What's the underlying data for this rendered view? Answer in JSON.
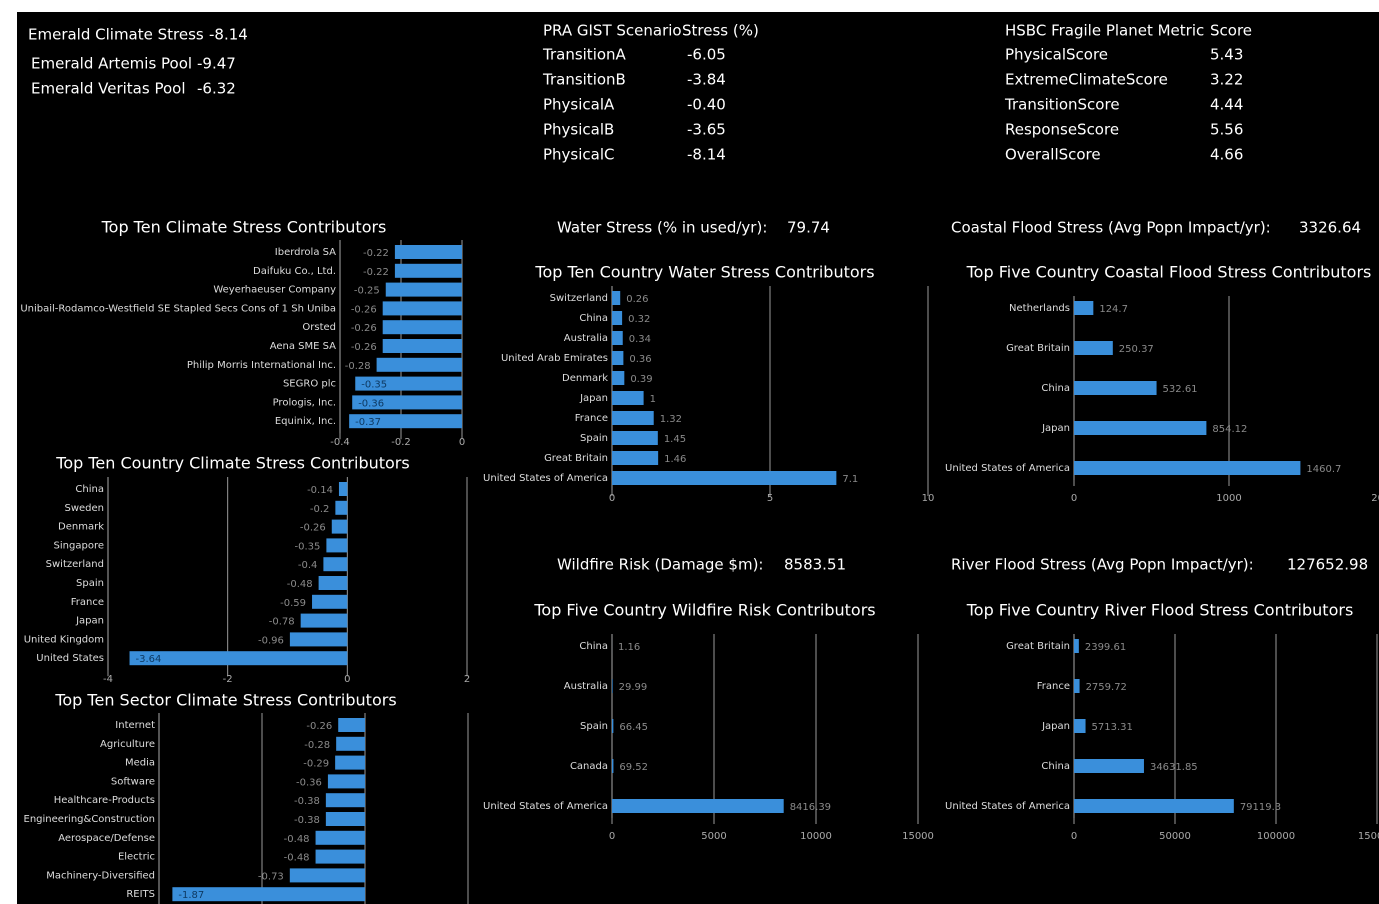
{
  "summary": [
    {
      "label": "Emerald Climate Stress",
      "value": "-8.14"
    },
    {
      "label": "Emerald Artemis Pool",
      "value": "-9.47"
    },
    {
      "label": "Emerald Veritas Pool",
      "value": "-6.32"
    }
  ],
  "scenario_table": {
    "headers": [
      "PRA GIST Scenario",
      "Stress (%)"
    ],
    "rows": [
      [
        "TransitionA",
        "-6.05"
      ],
      [
        "TransitionB",
        "-3.84"
      ],
      [
        "PhysicalA",
        "-0.40"
      ],
      [
        "PhysicalB",
        "-3.65"
      ],
      [
        "PhysicalC",
        "-8.14"
      ]
    ]
  },
  "metric_table": {
    "headers": [
      "HSBC Fragile Planet Metric",
      "Score"
    ],
    "rows": [
      [
        "PhysicalScore",
        "5.43"
      ],
      [
        "ExtremeClimateScore",
        "3.22"
      ],
      [
        "TransitionScore",
        "4.44"
      ],
      [
        "ResponseScore",
        "5.56"
      ],
      [
        "OverallScore",
        "4.66"
      ]
    ]
  },
  "metrics": [
    {
      "label": "Water Stress (% in used/yr):",
      "value": "79.74"
    },
    {
      "label": "Coastal Flood Stress (Avg Popn Impact/yr):",
      "value": "3326.64"
    },
    {
      "label": "Wildfire Risk (Damage $m):",
      "value": "8583.51"
    },
    {
      "label": "River Flood Stress (Avg Popn Impact/yr):",
      "value": "127652.98"
    }
  ],
  "chart_data": [
    {
      "type": "bar",
      "orientation": "horizontal",
      "title": "Top Ten Climate Stress Contributors",
      "categories": [
        "Iberdrola SA",
        "Daifuku Co., Ltd.",
        "Weyerhaeuser Company",
        "Unibail-Rodamco-Westfield SE Stapled Secs Cons of 1 Sh Uniba",
        "Orsted",
        "Aena SME SA",
        "Philip Morris International Inc.",
        "SEGRO plc",
        "Prologis, Inc.",
        "Equinix, Inc."
      ],
      "values": [
        -0.22,
        -0.22,
        -0.25,
        -0.26,
        -0.26,
        -0.26,
        -0.28,
        -0.35,
        -0.36,
        -0.37
      ],
      "color": "#3a8fdb",
      "xlim": [
        -0.4,
        0
      ],
      "xticks": [
        -0.4,
        -0.2,
        0
      ],
      "grid": true
    },
    {
      "type": "bar",
      "orientation": "horizontal",
      "title": "Top Ten Country Climate Stress Contributors",
      "categories": [
        "China",
        "Sweden",
        "Denmark",
        "Singapore",
        "Switzerland",
        "Spain",
        "France",
        "Japan",
        "United Kingdom",
        "United States"
      ],
      "values": [
        -0.14,
        -0.2,
        -0.26,
        -0.35,
        -0.4,
        -0.48,
        -0.59,
        -0.78,
        -0.96,
        -3.64
      ],
      "color": "#3a8fdb",
      "xlim": [
        -4,
        2
      ],
      "xticks": [
        -4,
        -2,
        0,
        2
      ],
      "grid": true
    },
    {
      "type": "bar",
      "orientation": "horizontal",
      "title": "Top Ten Sector Climate Stress Contributors",
      "categories": [
        "Internet",
        "Agriculture",
        "Media",
        "Software",
        "Healthcare-Products",
        "Engineering&Construction",
        "Aerospace/Defense",
        "Electric",
        "Machinery-Diversified",
        "REITS"
      ],
      "values": [
        -0.26,
        -0.28,
        -0.29,
        -0.36,
        -0.38,
        -0.38,
        -0.48,
        -0.48,
        -0.73,
        -1.87
      ],
      "color": "#3a8fdb",
      "xlim": [
        -2,
        1
      ],
      "xticks": [
        -2,
        -1,
        0,
        1
      ],
      "grid": true
    },
    {
      "type": "bar",
      "orientation": "horizontal",
      "title": "Top Ten Country Water Stress Contributors",
      "categories": [
        "Switzerland",
        "China",
        "Australia",
        "United Arab Emirates",
        "Denmark",
        "Japan",
        "France",
        "Spain",
        "Great Britain",
        "United States of America"
      ],
      "values": [
        0.26,
        0.32,
        0.34,
        0.36,
        0.39,
        1,
        1.32,
        1.45,
        1.46,
        7.1
      ],
      "color": "#3a8fdb",
      "xlim": [
        0,
        10
      ],
      "xticks": [
        0,
        5,
        10
      ],
      "grid": true
    },
    {
      "type": "bar",
      "orientation": "horizontal",
      "title": "Top Five Country Coastal Flood Stress Contributors",
      "categories": [
        "Netherlands",
        "Great Britain",
        "China",
        "Japan",
        "United States of America"
      ],
      "values": [
        124.7,
        250.37,
        532.61,
        854.12,
        1460.7
      ],
      "color": "#3a8fdb",
      "xlim": [
        0,
        2000
      ],
      "xticks": [
        0,
        1000,
        2000
      ],
      "grid": true
    },
    {
      "type": "bar",
      "orientation": "horizontal",
      "title": "Top Five Country Wildfire Risk Contributors",
      "categories": [
        "China",
        "Australia",
        "Spain",
        "Canada",
        "United States of America"
      ],
      "values": [
        1.16,
        29.99,
        66.45,
        69.52,
        8416.39
      ],
      "color": "#3a8fdb",
      "xlim": [
        0,
        15000
      ],
      "xticks": [
        0,
        5000,
        10000,
        15000
      ],
      "grid": true
    },
    {
      "type": "bar",
      "orientation": "horizontal",
      "title": "Top Five Country River Flood Stress Contributors",
      "categories": [
        "Great Britain",
        "France",
        "Japan",
        "China",
        "United States of America"
      ],
      "values": [
        2399.61,
        2759.72,
        5713.31,
        34631.85,
        79119.3
      ],
      "color": "#3a8fdb",
      "xlim": [
        0,
        150000
      ],
      "xticks": [
        0,
        50000,
        100000,
        150000
      ],
      "grid": true
    }
  ]
}
